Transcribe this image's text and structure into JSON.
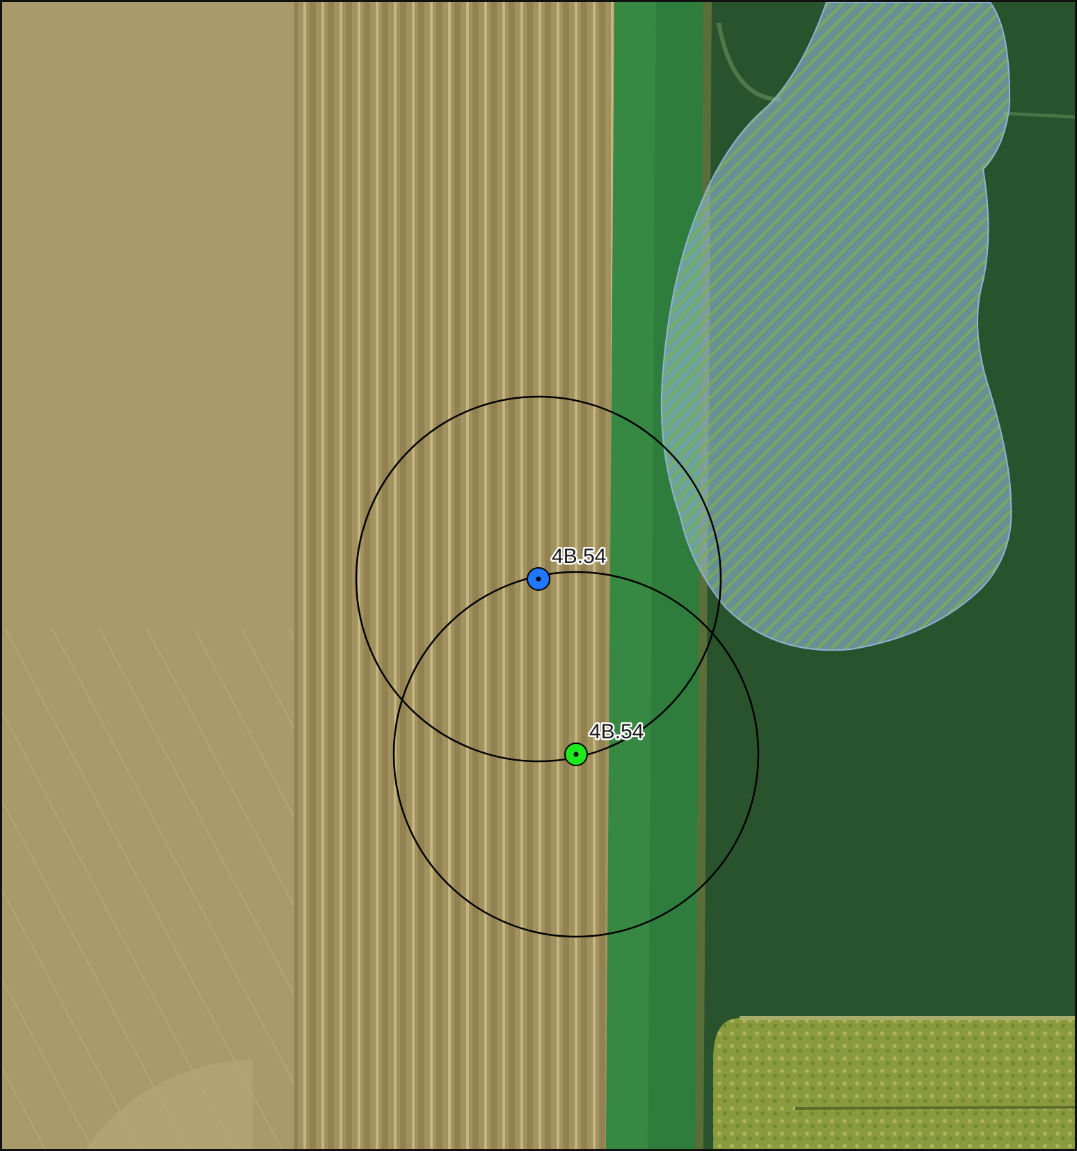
{
  "map": {
    "basemap": "aerial-imagery",
    "sites": [
      {
        "id": "blue-site",
        "label": "4B.54",
        "color": "#1f78ff"
      },
      {
        "id": "green-site",
        "label": "4B.54",
        "color": "#1ee81e"
      }
    ],
    "buffer_circle_color": "#000000",
    "hatched_area": {
      "fill_color": "#9fc5e8",
      "hatch_color": "#7ab050"
    }
  }
}
